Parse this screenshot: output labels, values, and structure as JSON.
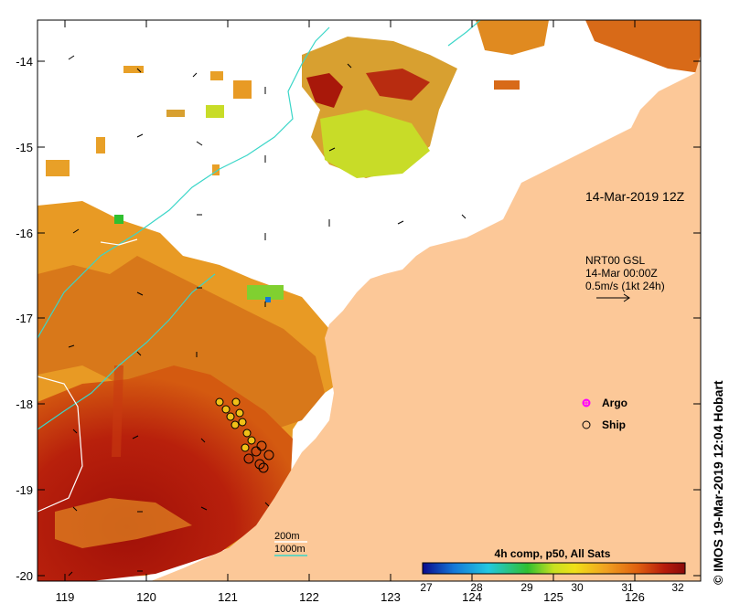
{
  "map": {
    "timestamp_label": "14-Mar-2019 12Z",
    "current_block": {
      "line1": "NRT00 GSL",
      "line2": "14-Mar 00:00Z",
      "line3": "0.5m/s (1kt 24h)"
    },
    "legend": {
      "argo_label": "Argo",
      "ship_label": "Ship"
    },
    "isobath": {
      "line1": "200m",
      "line2": "1000m"
    },
    "colorbar": {
      "title": "4h comp, p50, All Sats",
      "ticks": [
        "27",
        "28",
        "29",
        "30",
        "31",
        "32"
      ],
      "colors": [
        "#0a0a8c",
        "#1478d8",
        "#22c8e0",
        "#30c030",
        "#c8e020",
        "#f0e018",
        "#f0a020",
        "#e06010",
        "#b81c0c",
        "#8a0a0a"
      ]
    },
    "x_ticks": [
      "119",
      "120",
      "121",
      "122",
      "123",
      "124",
      "125",
      "126"
    ],
    "y_ticks": [
      "-14",
      "-15",
      "-16",
      "-17",
      "-18",
      "-19",
      "-20"
    ],
    "credit": "© IMOS 19-Mar-2019 12:04 Hobart",
    "colors": {
      "land": "#fcc898",
      "isobath_200": "#ffffff",
      "isobath_1000": "#3ad6c8",
      "argo": "#ff00ff"
    }
  }
}
